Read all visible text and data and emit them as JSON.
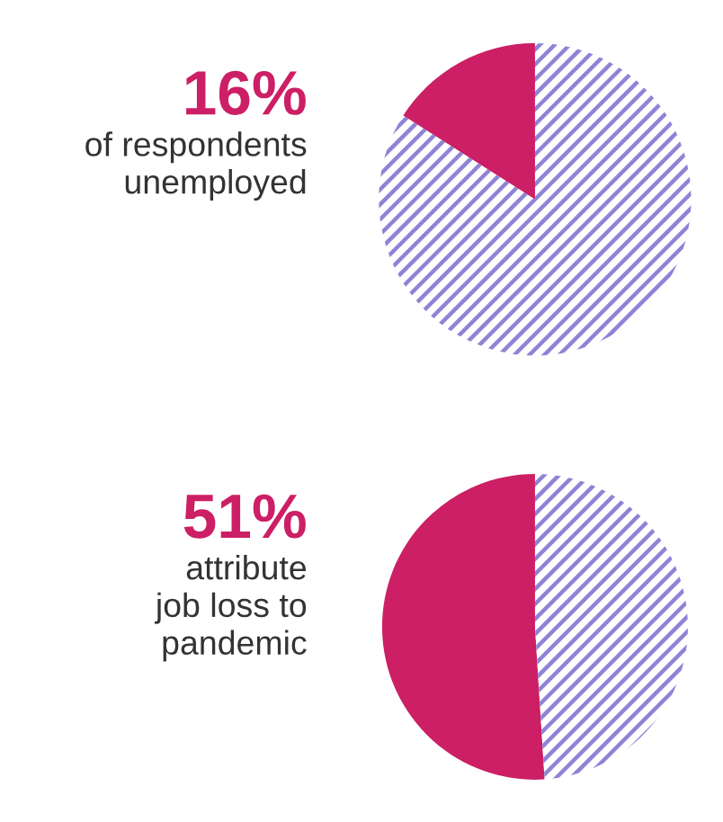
{
  "chart_data": [
    {
      "type": "pie",
      "title": "16%",
      "subtitle": "of respondents\nunemployed",
      "categories": [
        null,
        null
      ],
      "values": [
        16,
        84
      ],
      "colors": [
        "#cc1f65",
        "#8e84d6"
      ]
    },
    {
      "type": "pie",
      "title": "51%",
      "subtitle": "attribute\njob loss to\npandemic",
      "categories": [
        null,
        null
      ],
      "values": [
        51,
        49
      ],
      "colors": [
        "#cc1f65",
        "#8e84d6"
      ]
    }
  ]
}
